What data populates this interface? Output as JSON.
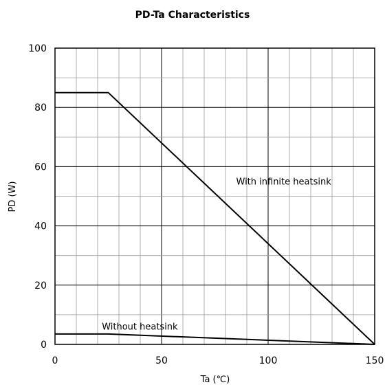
{
  "chart_data": {
    "type": "line",
    "title": "PD-Ta Characteristics",
    "xlabel": "Ta (℃)",
    "ylabel": "PD (W)",
    "xlim": [
      0,
      150
    ],
    "ylim": [
      0,
      100
    ],
    "x_ticks": [
      0,
      50,
      100,
      150
    ],
    "y_ticks": [
      0,
      20,
      40,
      60,
      80,
      100
    ],
    "x_minor_step": 10,
    "y_minor_step": 10,
    "grid": true,
    "series": [
      {
        "label": "With infinite heatsink",
        "color": "#000000",
        "points": [
          [
            0,
            85
          ],
          [
            25,
            85
          ],
          [
            150,
            0
          ]
        ]
      },
      {
        "label": "Without heatsink",
        "color": "#000000",
        "points": [
          [
            0,
            3.5
          ],
          [
            25,
            3.5
          ],
          [
            150,
            0
          ]
        ]
      }
    ],
    "annotations": [
      {
        "text": "With infinite heatsink",
        "x": 85,
        "y": 54
      },
      {
        "text": "Without heatsink",
        "x": 22,
        "y": 5
      }
    ]
  },
  "colors": {
    "grid_minor": "#999999",
    "grid_major": "#000000",
    "line": "#000000",
    "background": "#ffffff"
  }
}
